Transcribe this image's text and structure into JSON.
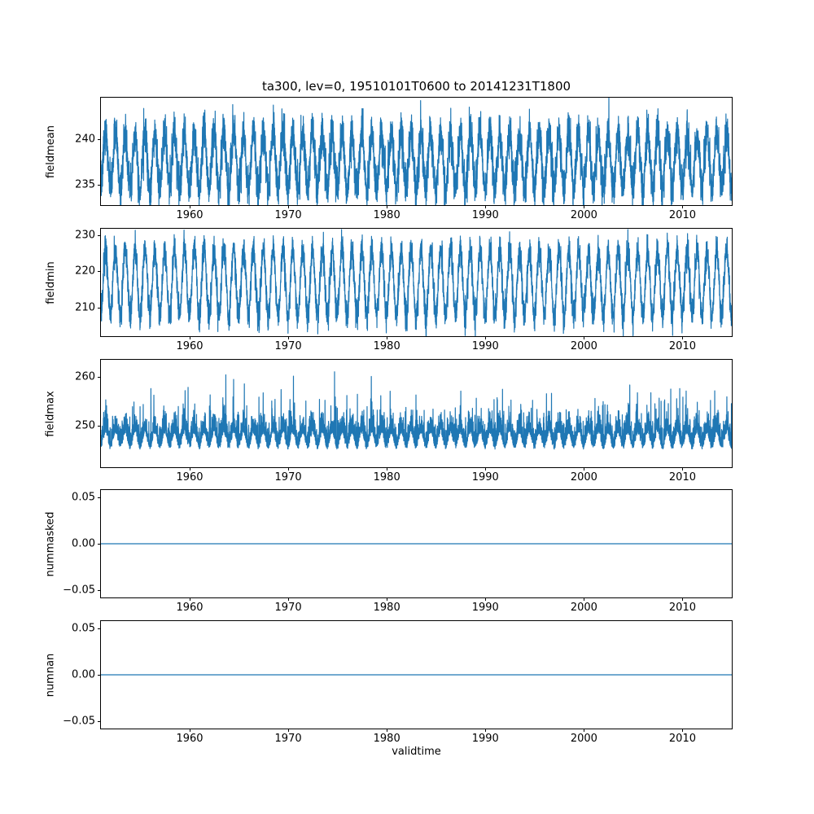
{
  "figure": {
    "title": "ta300, lev=0, 19510101T0600 to 20141231T1800",
    "xlabel": "validtime",
    "background_color": "#ffffff",
    "line_color": "#1f77b4",
    "spine_color": "#000000",
    "x_range": [
      1951.0,
      2015.0
    ],
    "x_ticks": {
      "values": [
        1960,
        1970,
        1980,
        1990,
        2000,
        2010
      ],
      "labels": [
        "1960",
        "1970",
        "1980",
        "1990",
        "2000",
        "2010"
      ]
    }
  },
  "chart_data": [
    {
      "type": "line",
      "name": "fieldmean",
      "ylabel": "fieldmean",
      "ylim": [
        232.8,
        244.6
      ],
      "yticks": {
        "values": [
          235,
          240
        ],
        "labels": [
          "235",
          "240"
        ]
      },
      "x_start": 1951.0,
      "x_end": 2015.0,
      "points_per_year": 100,
      "signal": {
        "type": "annual-cycle-with-noise",
        "baseline": 237.7,
        "annual_amplitude": 3.1,
        "annual_phase": 0.22,
        "noise_sd": 1.1,
        "seed": 7
      }
    },
    {
      "type": "line",
      "name": "fieldmin",
      "ylabel": "fieldmin",
      "ylim": [
        202.0,
        231.8
      ],
      "yticks": {
        "values": [
          210,
          220,
          230
        ],
        "labels": [
          "210",
          "220",
          "230"
        ]
      },
      "x_start": 1951.0,
      "x_end": 2015.0,
      "points_per_year": 100,
      "signal": {
        "type": "annual-cycle-with-noise",
        "baseline": 216.8,
        "annual_amplitude": 9.2,
        "annual_phase": 0.22,
        "noise_sd": 2.1,
        "seed": 13
      }
    },
    {
      "type": "line",
      "name": "fieldmax",
      "ylabel": "fieldmax",
      "ylim": [
        241.5,
        263.5
      ],
      "yticks": {
        "values": [
          250,
          260
        ],
        "labels": [
          "250",
          "260"
        ]
      },
      "x_start": 1951.0,
      "x_end": 2015.0,
      "points_per_year": 100,
      "signal": {
        "type": "annual-cycle-with-spikes",
        "baseline": 246.8,
        "annual_amplitude": 1.6,
        "annual_phase": 0.22,
        "noise_sd": 2.1,
        "spike_max": 9.0,
        "spike_probability": 0.03,
        "seed": 21
      }
    },
    {
      "type": "line",
      "name": "nummasked",
      "ylabel": "nummasked",
      "ylim": [
        -0.0575,
        0.0575
      ],
      "yticks": {
        "values": [
          -0.05,
          0.0,
          0.05
        ],
        "labels": [
          "−0.05",
          "0.00",
          "0.05"
        ]
      },
      "x_start": 1951.0,
      "x_end": 2015.0,
      "points_per_year": 2,
      "signal": {
        "type": "constant",
        "value": 0.0
      }
    },
    {
      "type": "line",
      "name": "numnan",
      "ylabel": "numnan",
      "ylim": [
        -0.0575,
        0.0575
      ],
      "yticks": {
        "values": [
          -0.05,
          0.0,
          0.05
        ],
        "labels": [
          "−0.05",
          "0.00",
          "0.05"
        ]
      },
      "x_start": 1951.0,
      "x_end": 2015.0,
      "points_per_year": 2,
      "signal": {
        "type": "constant",
        "value": 0.0
      }
    }
  ]
}
